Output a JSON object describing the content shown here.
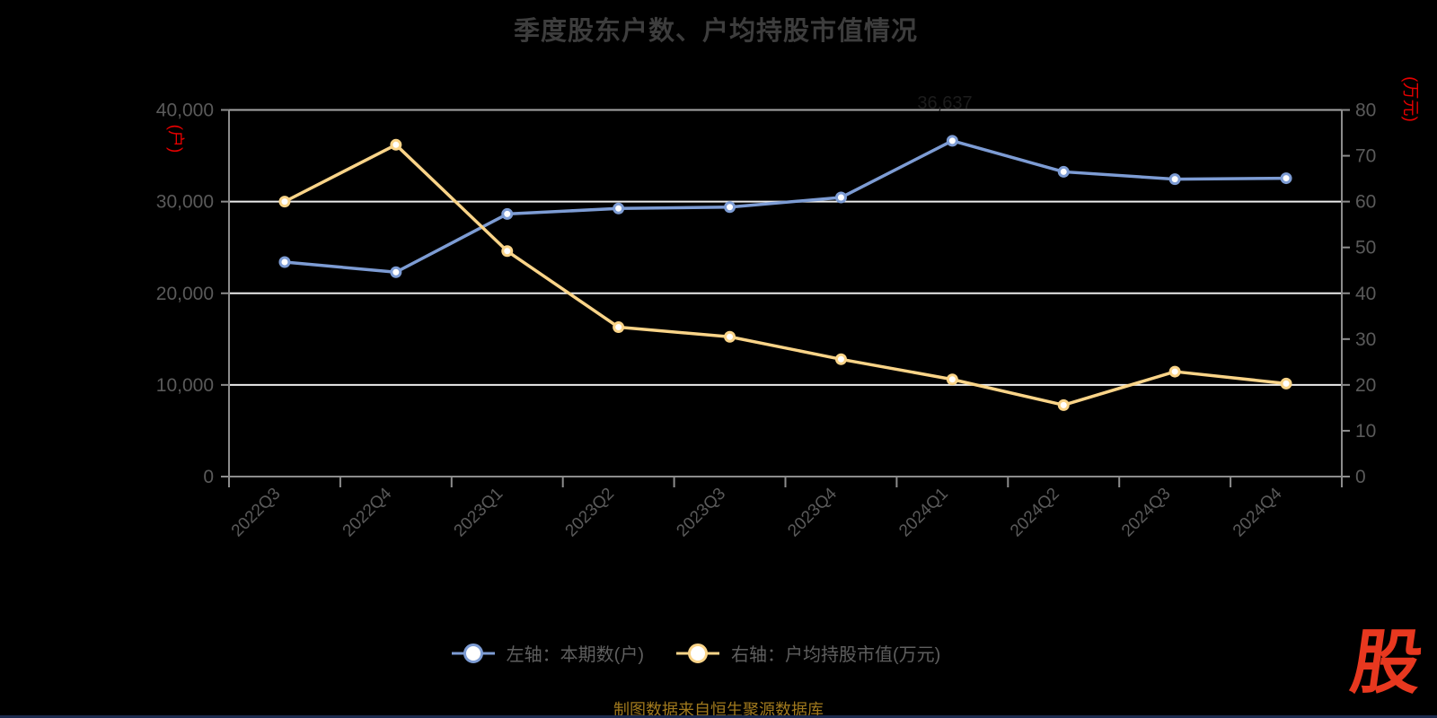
{
  "title": "季度股东户数、户均持股市值情况",
  "source_note": "制图数据来自恒生聚源数据库",
  "logo_text": "股",
  "annotation": {
    "max_label": "36,637"
  },
  "left_axis": {
    "unit_label": "(户)",
    "ticks": [
      "0",
      "10,000",
      "20,000",
      "30,000",
      "40,000"
    ],
    "max": 40000
  },
  "right_axis": {
    "unit_label": "(万元)",
    "ticks": [
      "0",
      "10",
      "20",
      "30",
      "40",
      "50",
      "60",
      "70",
      "80"
    ],
    "max": 80
  },
  "legend": [
    {
      "label": "左轴：本期数(户)",
      "color": "#7d9cd4"
    },
    {
      "label": "右轴：户均持股市值(万元)",
      "color": "#fad488"
    }
  ],
  "colors": {
    "background": "#000000",
    "series_blue": "#7d9cd4",
    "series_yellow": "#fad488",
    "axis_unit_red": "#e60000",
    "title_gray": "#3d3d3d",
    "axis_label_gray": "#5a5a5a",
    "legend_text_gray": "#5f5f5f",
    "caption_gold": "#a0791d",
    "logo_red": "#e8381f",
    "gridline_white": "#ececec",
    "gridline_top_gray": "#a6a6a6",
    "axis_line_gray": "#8c8c8c"
  },
  "chart_data": {
    "type": "line",
    "title": "季度股东户数、户均持股市值情况",
    "categories": [
      "2022Q3",
      "2022Q4",
      "2023Q1",
      "2023Q2",
      "2023Q3",
      "2023Q4",
      "2024Q1",
      "2024Q2",
      "2024Q3",
      "2024Q4"
    ],
    "series": [
      {
        "id": "shareholders",
        "name": "左轴：本期数(户)",
        "axis": "left",
        "color": "#7d9cd4",
        "values": [
          23400,
          22300,
          28650,
          29250,
          29400,
          30450,
          36637,
          33250,
          32450,
          32550
        ]
      },
      {
        "id": "avg-holding-value",
        "name": "右轴：户均持股市值(万元)",
        "axis": "right",
        "color": "#fad488",
        "values": [
          60,
          72.4,
          49.2,
          32.6,
          30.5,
          25.6,
          21.2,
          15.6,
          22.9,
          20.3
        ]
      }
    ],
    "xlabel": "",
    "ylabel_left": "(户)",
    "ylabel_right": "(万元)",
    "left_ylim": [
      0,
      40000
    ],
    "right_ylim": [
      0,
      80
    ],
    "grid": true,
    "legend_position": "bottom",
    "marker": "circle-white-fill"
  }
}
